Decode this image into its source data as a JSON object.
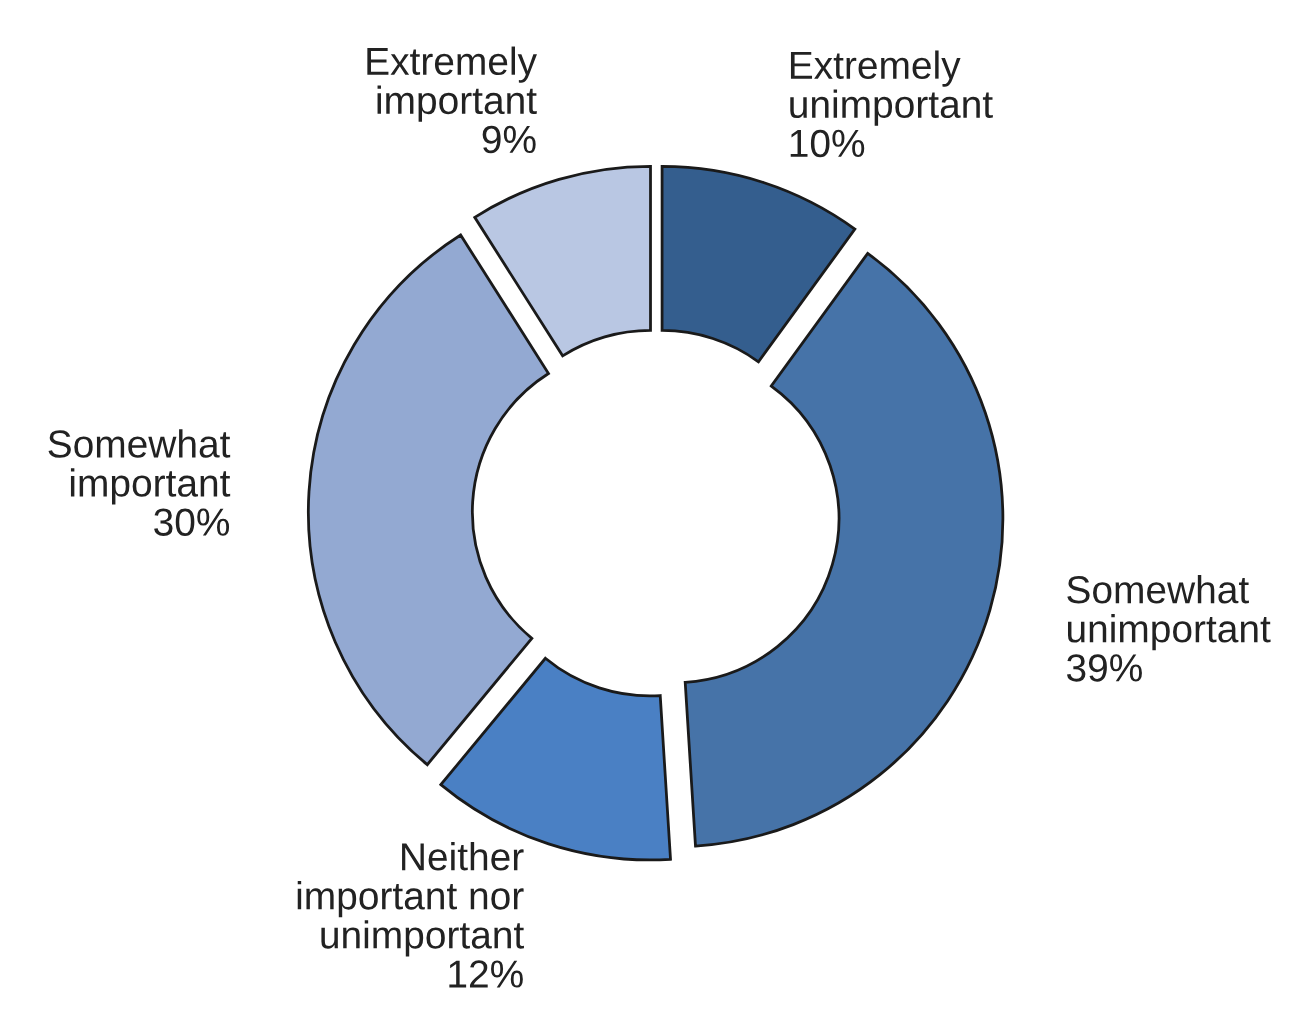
{
  "chart_data": {
    "type": "donut",
    "categories": [
      "Extremely\nunimportant",
      "Somewhat\nunimportant",
      "Neither\nimportant nor\nunimportant",
      "Somewhat\nimportant",
      "Extremely\nimportant"
    ],
    "values": [
      10,
      39,
      12,
      30,
      9
    ],
    "value_labels": [
      "10%",
      "39%",
      "12%",
      "30%",
      "9%"
    ],
    "colors": [
      "#345e8e",
      "#4673a8",
      "#4a80c4",
      "#93a9d2",
      "#b9c7e3"
    ],
    "legend": false
  }
}
